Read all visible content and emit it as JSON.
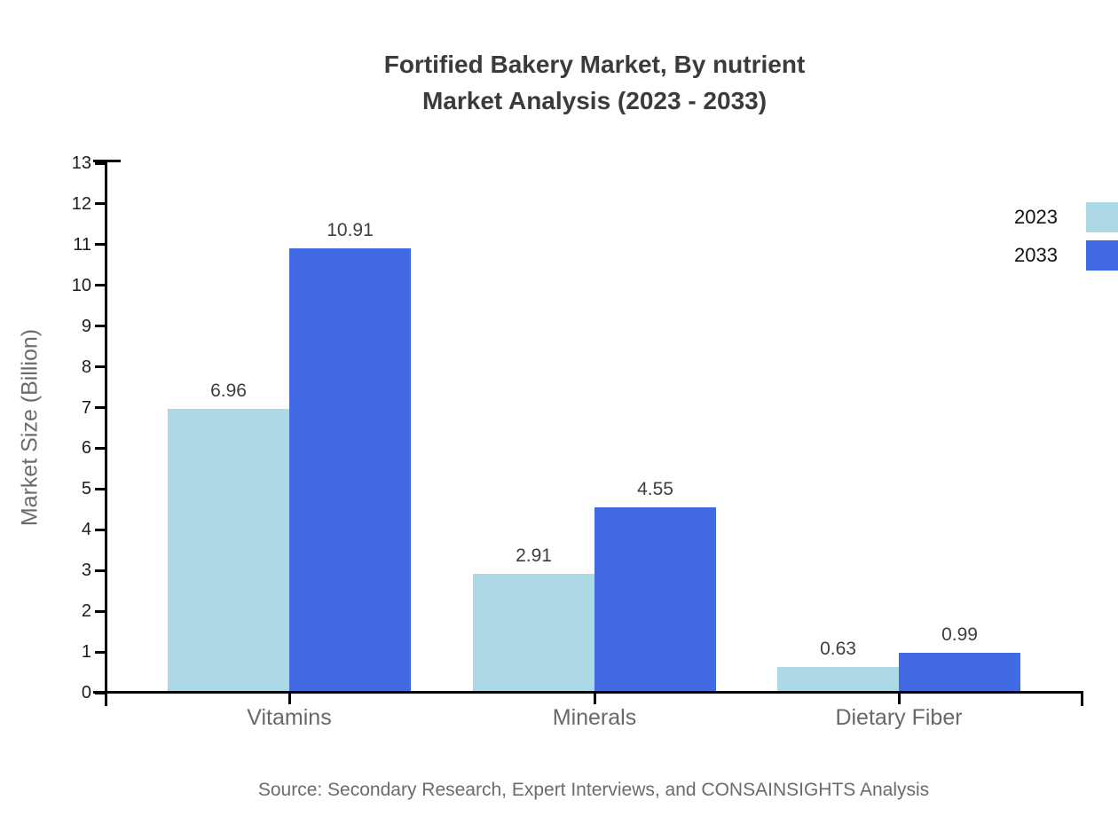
{
  "title": {
    "line1": "Fortified Bakery Market, By nutrient",
    "line2": "Market Analysis (2023 - 2033)"
  },
  "source_note": "Source: Secondary Research, Expert Interviews, and CONSAINSIGHTS Analysis",
  "colors": {
    "axis": "#000000",
    "title_text": "#3b3b3b",
    "muted_text": "#696c6f",
    "series_2023": "#ADD8E6",
    "series_2033": "#4169E1"
  },
  "chart_data": {
    "type": "bar",
    "title": "Fortified Bakery Market, By nutrient Market Analysis (2023 - 2033)",
    "categories": [
      "Vitamins",
      "Minerals",
      "Dietary Fiber"
    ],
    "series": [
      {
        "name": "2023",
        "color": "#ADD8E6",
        "values": [
          6.96,
          2.91,
          0.63
        ]
      },
      {
        "name": "2033",
        "color": "#4169E1",
        "values": [
          10.91,
          4.55,
          0.99
        ]
      }
    ],
    "xlabel": "",
    "ylabel": "Market Size (Billion)",
    "ylim": [
      0,
      13
    ],
    "ytick_step": 1,
    "yticks": [
      0,
      1,
      2,
      3,
      4,
      5,
      6,
      7,
      8,
      9,
      10,
      11,
      12,
      13
    ],
    "grid": false,
    "legend_position": "top-right",
    "value_label_decimals": 2
  }
}
